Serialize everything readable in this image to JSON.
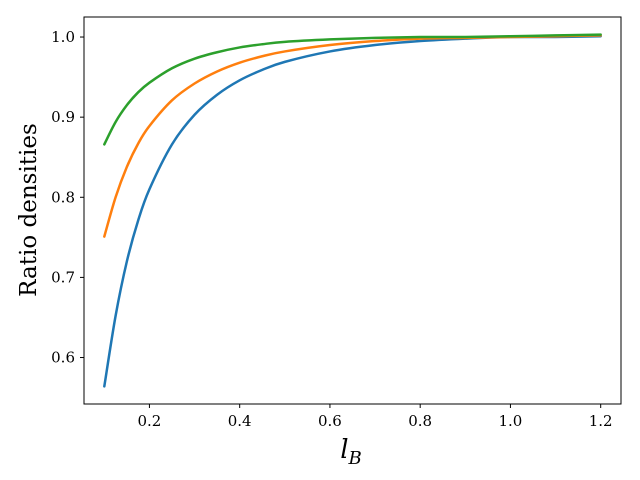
{
  "chart_data": {
    "type": "line",
    "title": "",
    "xlabel": "l",
    "xlabel_subscript": "B",
    "ylabel": "Ratio densities",
    "xlim": [
      0.055,
      1.245
    ],
    "ylim": [
      0.542,
      1.025
    ],
    "xticks": [
      0.2,
      0.4,
      0.6,
      0.8,
      1.0,
      1.2
    ],
    "xtick_labels": [
      "0.2",
      "0.4",
      "0.6",
      "0.8",
      "1.0",
      "1.2"
    ],
    "yticks": [
      0.6,
      0.7,
      0.8,
      0.9,
      1.0
    ],
    "ytick_labels": [
      "0.6",
      "0.7",
      "0.8",
      "0.9",
      "1.0"
    ],
    "grid": false,
    "legend": "none",
    "series": [
      {
        "color": "#1f77b4",
        "x": [
          0.1,
          0.125,
          0.15,
          0.175,
          0.2,
          0.25,
          0.3,
          0.35,
          0.4,
          0.45,
          0.5,
          0.6,
          0.7,
          0.8,
          0.9,
          1.0,
          1.1,
          1.2
        ],
        "values": [
          0.564,
          0.652,
          0.72,
          0.771,
          0.81,
          0.866,
          0.903,
          0.928,
          0.946,
          0.959,
          0.969,
          0.982,
          0.99,
          0.995,
          0.998,
          1.0,
          1.0,
          1.001
        ]
      },
      {
        "color": "#ff7f0e",
        "x": [
          0.1,
          0.125,
          0.15,
          0.175,
          0.2,
          0.25,
          0.3,
          0.35,
          0.4,
          0.45,
          0.5,
          0.6,
          0.7,
          0.8,
          0.9,
          1.0,
          1.1,
          1.2
        ],
        "values": [
          0.751,
          0.8,
          0.838,
          0.867,
          0.889,
          0.921,
          0.942,
          0.957,
          0.968,
          0.976,
          0.982,
          0.99,
          0.995,
          0.998,
          0.999,
          1.0,
          1.001,
          1.002
        ]
      },
      {
        "color": "#2ca02c",
        "x": [
          0.1,
          0.125,
          0.15,
          0.175,
          0.2,
          0.25,
          0.3,
          0.35,
          0.4,
          0.45,
          0.5,
          0.6,
          0.7,
          0.8,
          0.9,
          1.0,
          1.1,
          1.2
        ],
        "values": [
          0.866,
          0.894,
          0.915,
          0.931,
          0.943,
          0.961,
          0.973,
          0.981,
          0.987,
          0.991,
          0.994,
          0.997,
          0.999,
          1.0,
          1.0,
          1.001,
          1.002,
          1.003
        ]
      }
    ]
  }
}
